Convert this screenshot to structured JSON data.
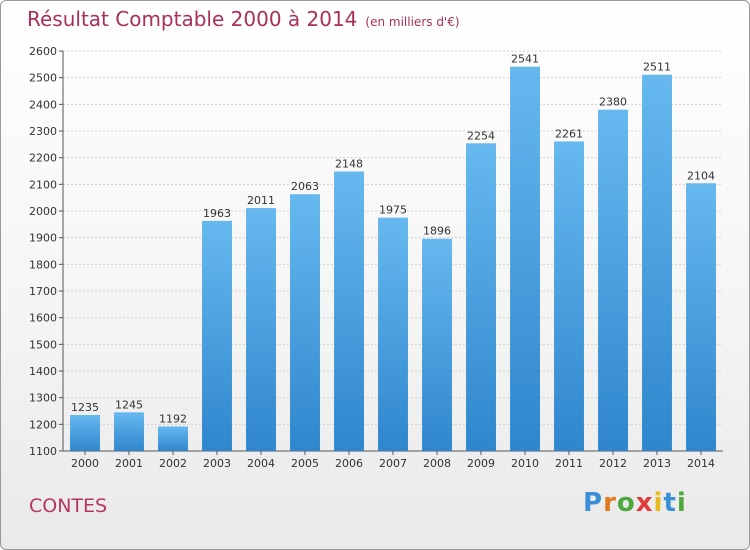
{
  "title": "Résultat Comptable 2000 à 2014",
  "subtitle": "(en milliers d'€)",
  "place": "CONTES",
  "logo": {
    "letters": [
      "P",
      "r",
      "o",
      "x",
      "i",
      "t",
      "i"
    ],
    "colors": [
      "#3a8fd6",
      "#e07a1f",
      "#4fa83d",
      "#e23a3a",
      "#e8b81e",
      "#3a8fd6",
      "#4fa83d"
    ]
  },
  "colors": {
    "bar": "#3d98da",
    "bar_light": "#62b6ee",
    "grid": "#cfcfcf"
  },
  "chart_data": {
    "type": "bar",
    "title": "Résultat Comptable 2000 à 2014",
    "xlabel": "",
    "ylabel": "",
    "ylim": [
      1100,
      2600
    ],
    "yticks": [
      1100,
      1200,
      1300,
      1400,
      1500,
      1600,
      1700,
      1800,
      1900,
      2000,
      2100,
      2200,
      2300,
      2400,
      2500,
      2600
    ],
    "categories": [
      "2000",
      "2001",
      "2002",
      "2003",
      "2004",
      "2005",
      "2006",
      "2007",
      "2008",
      "2009",
      "2010",
      "2011",
      "2012",
      "2013",
      "2014"
    ],
    "values": [
      1235,
      1245,
      1192,
      1963,
      2011,
      2063,
      2148,
      1975,
      1896,
      2254,
      2541,
      2261,
      2380,
      2511,
      2104
    ],
    "grid": true
  }
}
